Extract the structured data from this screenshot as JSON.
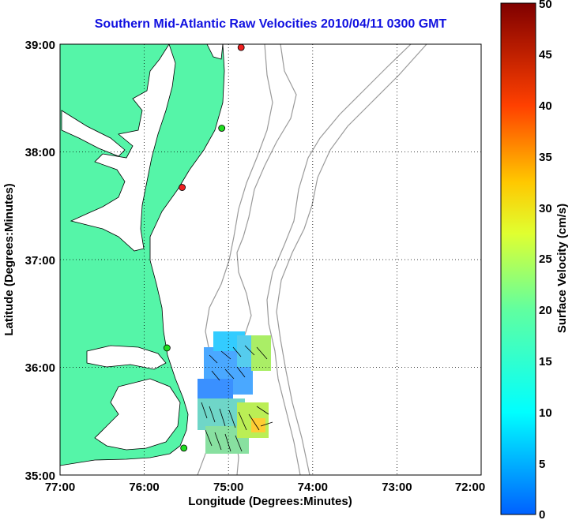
{
  "title": "Southern Mid-Atlantic Raw Velocities 2010/04/11 0300 GMT",
  "xlabel": "Longitude (Degrees:Minutes)",
  "ylabel": "Latitude (Degrees:Minutes)",
  "colorbar_label": "Surface Velocity (cm/s)",
  "x_ticks": [
    "77:00",
    "76:00",
    "75:00",
    "74:00",
    "73:00",
    "72:00"
  ],
  "y_ticks": [
    "39:00",
    "38:00",
    "37:00",
    "36:00",
    "35:00"
  ],
  "colorbar_ticks": [
    "0",
    "5",
    "10",
    "15",
    "20",
    "25",
    "30",
    "35",
    "40",
    "45",
    "50"
  ],
  "map_data": {
    "lon_range": [
      -77,
      -72
    ],
    "lat_range": [
      35,
      39
    ],
    "grid": true,
    "colorbar_range": [
      0,
      50
    ],
    "land_color": "#55f5a8",
    "station_markers": [
      {
        "lon": -74.85,
        "lat": 38.97,
        "color": "#ee2020"
      },
      {
        "lon": -75.08,
        "lat": 38.22,
        "color": "#20dd20"
      },
      {
        "lon": -75.55,
        "lat": 37.67,
        "color": "#ee2020"
      },
      {
        "lon": -75.73,
        "lat": 36.18,
        "color": "#20dd20"
      },
      {
        "lon": -75.53,
        "lat": 35.25,
        "color": "#20dd20"
      }
    ]
  }
}
